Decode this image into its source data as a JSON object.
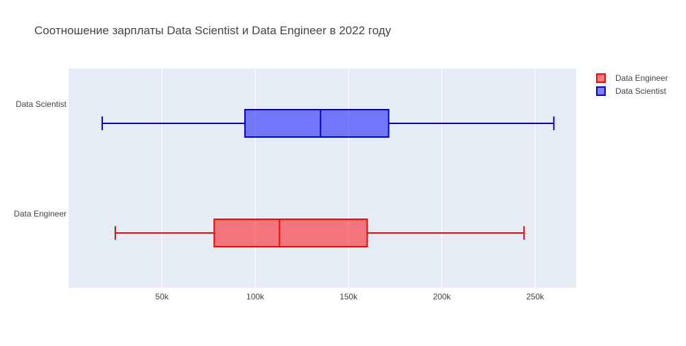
{
  "chart_data": {
    "type": "box",
    "title": "Соотношение зарплаты Data Scientist и Data Engineer в 2022 году",
    "xlabel": "",
    "ylabel": "",
    "xlim": [
      0,
      272000
    ],
    "xticks": [
      50000,
      100000,
      150000,
      200000,
      250000
    ],
    "xtick_labels": [
      "50k",
      "100k",
      "150k",
      "200k",
      "250k"
    ],
    "grid": true,
    "legend_position": "top-right",
    "categories": [
      "Data Engineer",
      "Data Scientist"
    ],
    "series": [
      {
        "name": "Data Engineer",
        "category": "Data Engineer",
        "color": "#ff0000",
        "fill": "rgba(255,0,0,0.5)",
        "min": 25000,
        "q1": 78000,
        "median": 113000,
        "q3": 160000,
        "max": 244000
      },
      {
        "name": "Data Scientist",
        "category": "Data Scientist",
        "color": "#0000cc",
        "fill": "rgba(0,0,255,0.5)",
        "min": 18000,
        "q1": 94500,
        "median": 135000,
        "q3": 171500,
        "max": 260000
      }
    ],
    "legend": [
      "Data Engineer",
      "Data Scientist"
    ]
  }
}
